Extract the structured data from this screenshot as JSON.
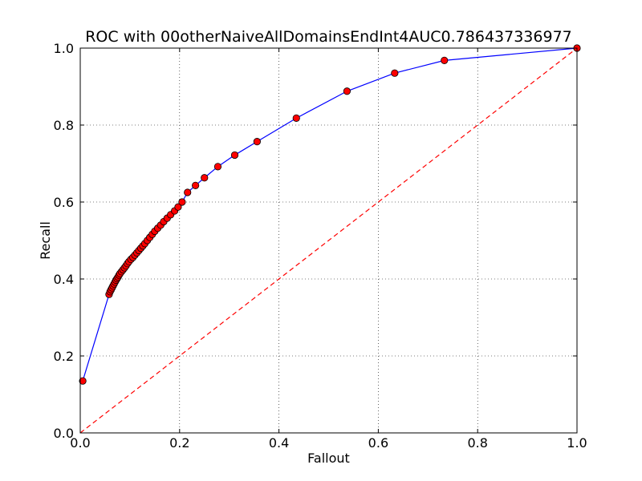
{
  "chart_data": {
    "type": "line",
    "title": "ROC with 00otherNaiveAllDomainsEndInt4AUC0.786437336977",
    "xlabel": "Fallout",
    "ylabel": "Recall",
    "xlim": [
      0.0,
      1.0
    ],
    "ylim": [
      0.0,
      1.0
    ],
    "x_ticks": [
      "0.0",
      "0.2",
      "0.4",
      "0.6",
      "0.8",
      "1.0"
    ],
    "y_ticks": [
      "0.0",
      "0.2",
      "0.4",
      "0.6",
      "0.8",
      "1.0"
    ],
    "grid": true,
    "grid_style": "dotted",
    "series": [
      {
        "style": "solid line with circle markers",
        "line_color": "#0000ff",
        "marker_color": "#ff0000",
        "x": [
          0.005,
          0.058,
          0.06,
          0.062,
          0.064,
          0.066,
          0.068,
          0.07,
          0.072,
          0.074,
          0.076,
          0.078,
          0.08,
          0.083,
          0.086,
          0.089,
          0.092,
          0.095,
          0.098,
          0.102,
          0.106,
          0.11,
          0.114,
          0.118,
          0.122,
          0.126,
          0.13,
          0.135,
          0.14,
          0.145,
          0.15,
          0.156,
          0.162,
          0.168,
          0.175,
          0.182,
          0.19,
          0.197,
          0.205,
          0.216,
          0.232,
          0.25,
          0.277,
          0.311,
          0.356,
          0.435,
          0.537,
          0.633,
          0.733,
          1.0
        ],
        "y": [
          0.135,
          0.36,
          0.367,
          0.372,
          0.377,
          0.382,
          0.387,
          0.392,
          0.397,
          0.401,
          0.405,
          0.41,
          0.414,
          0.419,
          0.424,
          0.429,
          0.434,
          0.44,
          0.445,
          0.451,
          0.456,
          0.462,
          0.468,
          0.474,
          0.48,
          0.486,
          0.492,
          0.5,
          0.508,
          0.516,
          0.524,
          0.532,
          0.54,
          0.549,
          0.558,
          0.567,
          0.577,
          0.587,
          0.6,
          0.625,
          0.643,
          0.663,
          0.692,
          0.722,
          0.757,
          0.818,
          0.888,
          0.935,
          0.968,
          1.0
        ]
      },
      {
        "style": "dashed diagonal",
        "line_color": "#ff0000",
        "x": [
          0.0,
          1.0
        ],
        "y": [
          0.0,
          1.0
        ]
      }
    ]
  }
}
